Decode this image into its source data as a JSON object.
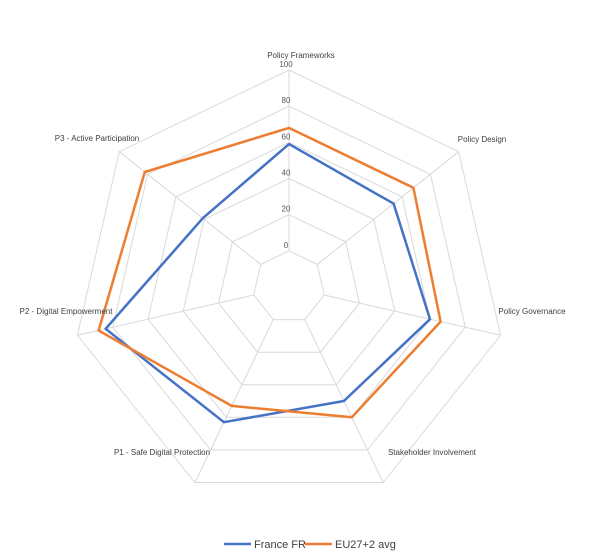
{
  "chart_data": {
    "type": "radar",
    "axes": [
      "Policy Frameworks",
      "Policy Design",
      "Policy Governance",
      "Stakeholder Involvement",
      "P1 - Safe Digital Protection",
      "P2 - Digital Empowerment",
      "P3 - Active Participation"
    ],
    "ticks": [
      "0",
      "20",
      "40",
      "60",
      "80",
      "100"
    ],
    "rlim": [
      -20,
      100
    ],
    "series": [
      {
        "name": "France FR",
        "color": "#4472C4",
        "values": [
          59,
          54,
          60,
          50,
          63,
          84,
          41
        ]
      },
      {
        "name": "EU27+2 avg",
        "color": "#ED7D31",
        "values": [
          68,
          68,
          66,
          60,
          53,
          88,
          82
        ]
      }
    ],
    "grid": true,
    "legend_position": "bottom"
  }
}
